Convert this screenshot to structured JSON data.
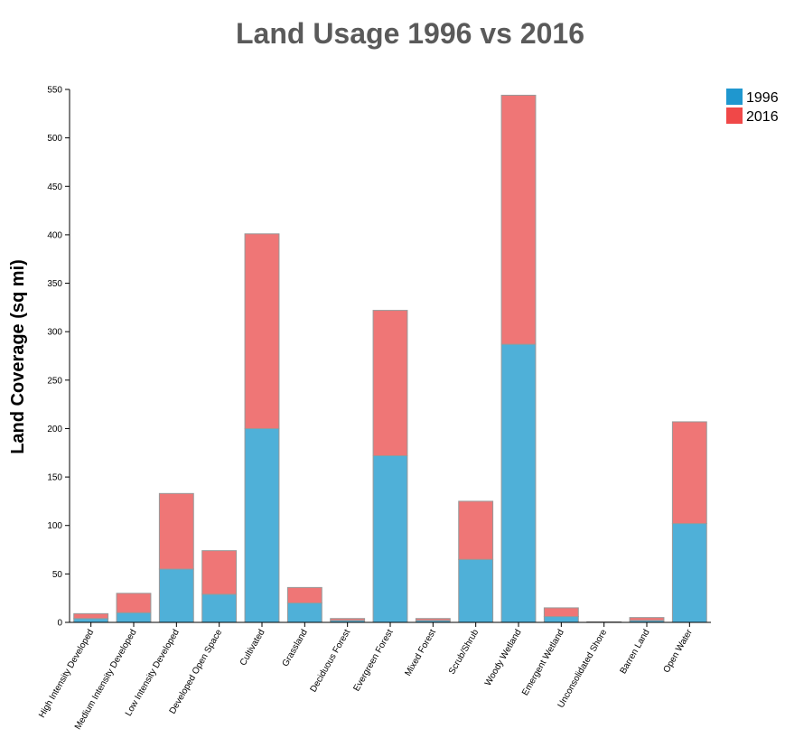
{
  "chart_data": {
    "type": "bar",
    "stacked": true,
    "title": "Land Usage 1996 vs 2016",
    "xlabel": "",
    "ylabel": "Land Coverage (sq mi)",
    "ylim": [
      0,
      550
    ],
    "yticks": [
      0,
      50,
      100,
      150,
      200,
      250,
      300,
      350,
      400,
      450,
      500,
      550
    ],
    "legend_position": "top-right",
    "categories": [
      "High Intensity Developed",
      "Medium Intensity Developed",
      "Low Intensity Developed",
      "Developed Open Space",
      "Cultivated",
      "Grassland",
      "Deciduous Forest",
      "Evergreen Forest",
      "Mixed Forest",
      "Scrub/Shrub",
      "Woody Wetland",
      "Emergent Wetland",
      "Unconsolidated Shore",
      "Barren Land",
      "Open Water"
    ],
    "series": [
      {
        "name": "1996",
        "legend_color": "#1f97cf",
        "bar_color": "#4fb0d8",
        "values": [
          4,
          10,
          55,
          29,
          200,
          20,
          2,
          172,
          2,
          65,
          287,
          6,
          0.3,
          2,
          102
        ]
      },
      {
        "name": "2016",
        "legend_color": "#f04848",
        "bar_color": "#ef7676",
        "values": [
          5,
          20,
          78,
          45,
          201,
          16,
          2,
          150,
          2,
          60,
          257,
          9,
          0.3,
          3,
          105
        ]
      }
    ]
  }
}
